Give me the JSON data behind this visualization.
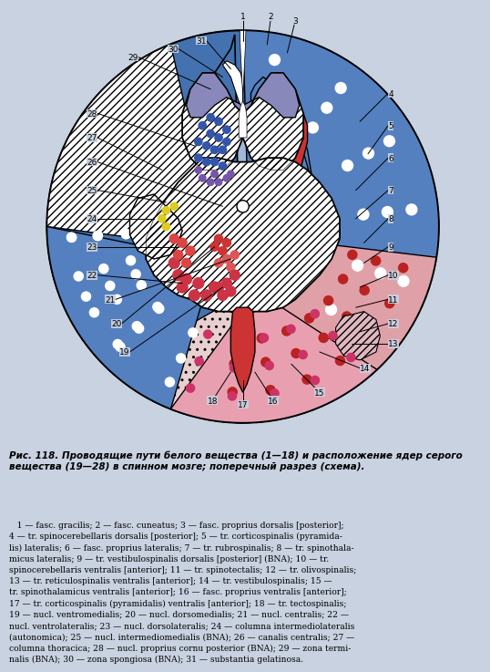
{
  "title_bold": "Рис. 118.",
  "title_rest": " Проводящие пути белого вещества (1—18) и расположение ядер серого вещества (19—28) в спинном мозге; поперечный разрез (схема).",
  "caption": "   1 — fasc. gracilis; 2 — fasc. cuneatus; 3 — fasc. proprius dorsalis [posterior];\n4 — tr. spinocerebellaris dorsalis [posterior]; 5 — tr. corticospinalis (pyramida-\nlis) lateralis; 6 — fasc. proprius lateralis; 7 — tr. rubrospinalis; 8 — tr. spinothala-\nmicus lateralis; 9 — tr. vestibulospinalis dorsalis [posterior] (BNA); 10 — tr.\nspinocerebellaris ventralis [anterior]; 11 — tr. spinotectalis; 12 — tr. olivospinalis;\n13 — tr. reticulospinalis ventralis [anterior]; 14 — tr. vestibulospinalis; 15 —\ntr. spinothalamicus ventralis [anterior]; 16 — fasc. proprius ventralis [anterior];\n17 — tr. corticospinalis (pyramidalis) ventralis [anterior]; 18 — tr. tectospinalis;\n19 — nucl. ventromedialis; 20 — nucl. dorsomedialis; 21 — nucl. centralis; 22 —\nnucl. ventrolateralis; 23 — nucl. dorsolateralis; 24 — columna intermediolateralis\n(autonomica); 25 — nucl. intermediomedialis (BNA); 26 — canalis centralis; 27 —\ncolumna thoracica; 28 — nucl. proprius cornu posterior (BNA); 29 — zona termi-\nnalis (BNA); 30 — zona spongiosa (BNA); 31 — substantia gelatinosa.",
  "bg_color": "#c8d2e0",
  "blue_dark": "#4472b0",
  "blue_dots_bg": "#5580c0",
  "blue_light_inner": "#a0b8d8",
  "red_solid": "#cc3333",
  "red_medium": "#d96060",
  "pink_check": "#e8a0b0",
  "pink_dots_bg": "#e0a0a8",
  "pink_stripe": "#e898a0",
  "olive_stripe": "#c8c0b0",
  "white": "#ffffff",
  "gray_matter": "#ffffff",
  "hatch_gray": "#f0e8e0",
  "yellow_nucl": "#ddcc22",
  "blue_nucl": "#3355aa",
  "purple_nucl": "#7755aa",
  "red_nucl_dark": "#cc3333",
  "red_nucl_mid": "#dd5555",
  "text_color": "#111111"
}
